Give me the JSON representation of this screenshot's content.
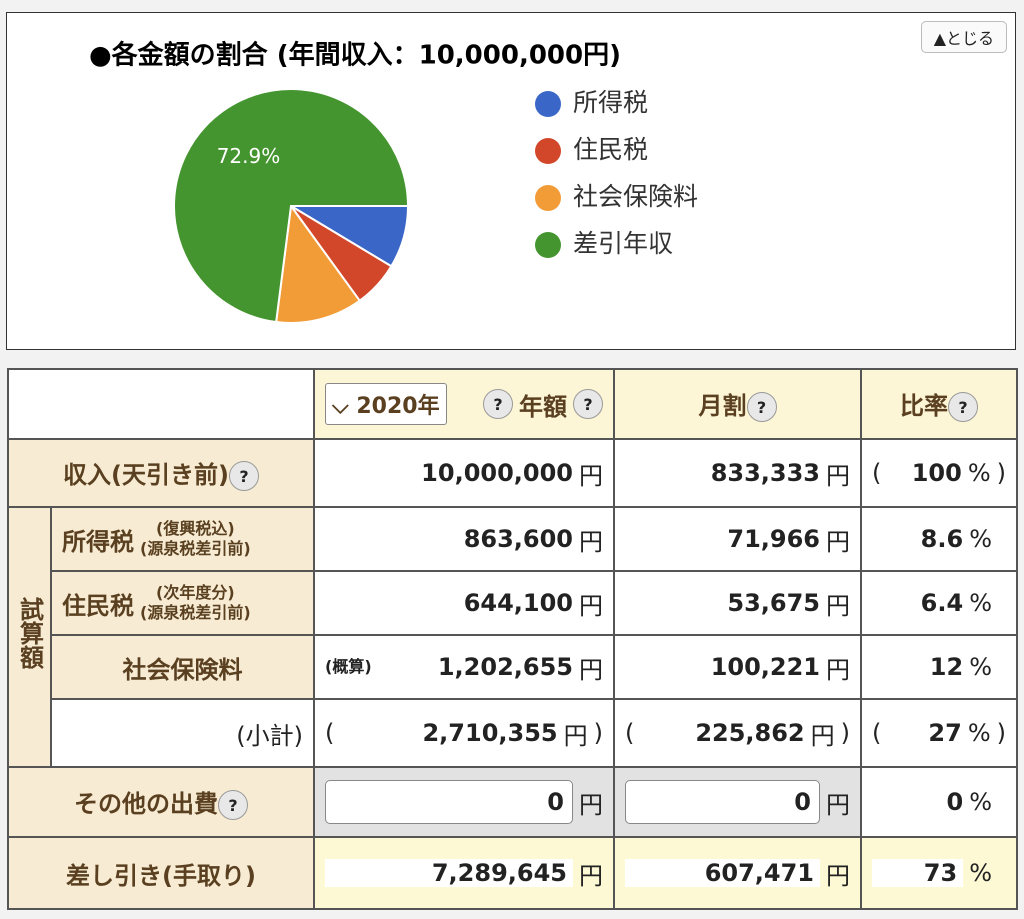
{
  "chart_data": {
    "type": "pie",
    "title": "●各金額の割合 (年間収入：10,000,000円)",
    "categories": [
      "所得税",
      "住民税",
      "社会保険料",
      "差引年収"
    ],
    "colors": [
      "#3a66c7",
      "#d2462a",
      "#f29c38",
      "#44952f"
    ],
    "values": [
      8.6,
      6.4,
      12.0,
      72.9
    ],
    "value_labels": [
      null,
      null,
      null,
      "72.9%"
    ]
  },
  "close_button": "▲とじる",
  "marks": {
    "yen": "円",
    "pct": "%",
    "open": "(",
    "close": ")",
    "help": "?"
  },
  "header": {
    "year": "2020年",
    "annual": "年額",
    "monthly": "月割",
    "ratio": "比率"
  },
  "income": {
    "label": "収入(天引き前)",
    "annual": "10,000,000",
    "monthly": "833,333",
    "ratio": "100"
  },
  "side_label": "試算額",
  "income_tax": {
    "label": "所得税",
    "note1": "(復興税込)",
    "note2": "(源泉税差引前)",
    "annual": "863,600",
    "monthly": "71,966",
    "ratio": "8.6"
  },
  "resident_tax": {
    "label": "住民税",
    "note1": "(次年度分)",
    "note2": "(源泉税差引前)",
    "annual": "644,100",
    "monthly": "53,675",
    "ratio": "6.4"
  },
  "social": {
    "label": "社会保険料",
    "note": "(概算)",
    "annual": "1,202,655",
    "monthly": "100,221",
    "ratio": "12"
  },
  "subtotal": {
    "label": "(小計)",
    "annual": "2,710,355",
    "monthly": "225,862",
    "ratio": "27"
  },
  "other": {
    "label": "その他の出費",
    "annual": "0",
    "monthly": "0",
    "ratio": "0"
  },
  "net": {
    "label": "差し引き(手取り)",
    "annual": "7,289,645",
    "monthly": "607,471",
    "ratio": "73"
  }
}
